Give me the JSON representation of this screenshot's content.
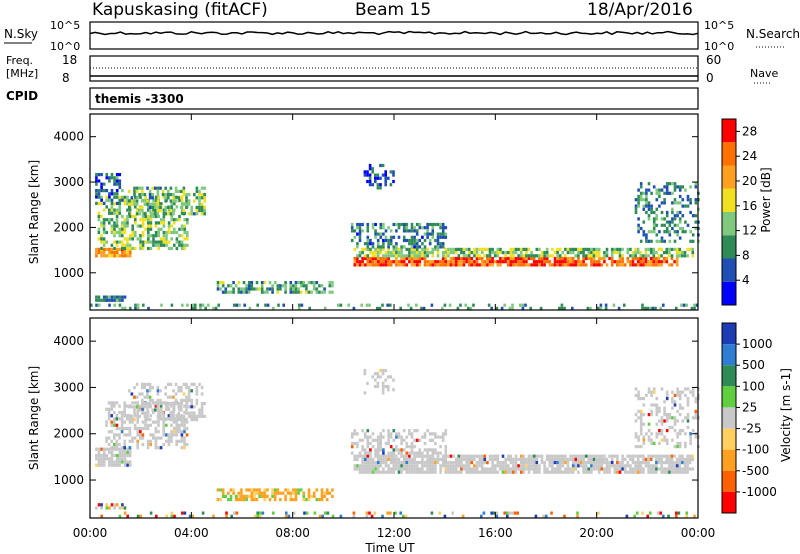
{
  "header": {
    "station": "Kapuskasing (fitACF)",
    "beam": "Beam 15",
    "date": "18/Apr/2016"
  },
  "noise_panel": {
    "left_label": "N.Sky",
    "right_label": "N.Search",
    "left_ticks": [
      "10^5",
      "10^0"
    ],
    "right_ticks": [
      "10^5",
      "10^0"
    ]
  },
  "freq_panel": {
    "left_label_line1": "Freq.",
    "left_label_line2": "[MHz]",
    "left_ticks": [
      "18",
      "8"
    ],
    "right_label": "Nave",
    "right_ticks": [
      "60",
      "0"
    ]
  },
  "cpid": {
    "label": "CPID",
    "value": "themis -3300"
  },
  "x_axis": {
    "label": "Time UT",
    "ticks": [
      "00:00",
      "04:00",
      "08:00",
      "12:00",
      "16:00",
      "20:00",
      "00:00"
    ],
    "range_hours": [
      0,
      24
    ]
  },
  "chart_data": [
    {
      "type": "heatmap",
      "name": "power",
      "ylabel": "Slant Range [km]",
      "yticks": [
        "1000",
        "2000",
        "3000",
        "4000"
      ],
      "ylim": [
        180,
        4500
      ],
      "xlim_hours": [
        0,
        24
      ],
      "colorbar_label": "Power [dB]",
      "colorbar_ticks": [
        "4",
        "8",
        "12",
        "16",
        "20",
        "24",
        "28"
      ],
      "colorbar_range": [
        0,
        30
      ],
      "colors": [
        "#0000ff",
        "#1f4fb4",
        "#2e8b57",
        "#7fc97f",
        "#f0e020",
        "#ffa020",
        "#ff7000",
        "#ff0000"
      ],
      "bands": [
        {
          "t0": 0.2,
          "t1": 1.6,
          "r0": 1350,
          "r1": 1550,
          "level": 22,
          "density": 0.9
        },
        {
          "t0": 0.3,
          "t1": 3.8,
          "r0": 1550,
          "r1": 2700,
          "level": 13,
          "density": 0.55
        },
        {
          "t0": 1.5,
          "t1": 4.5,
          "r0": 2300,
          "r1": 2900,
          "level": 12,
          "density": 0.5
        },
        {
          "t0": 0.2,
          "t1": 1.3,
          "r0": 2500,
          "r1": 3200,
          "level": 7,
          "density": 0.45
        },
        {
          "t0": 5.0,
          "t1": 9.6,
          "r0": 600,
          "r1": 820,
          "level": 11,
          "density": 0.6
        },
        {
          "t0": 0.2,
          "t1": 1.5,
          "r0": 380,
          "r1": 500,
          "level": 8,
          "density": 0.7
        },
        {
          "t0": 10.4,
          "t1": 23.2,
          "r0": 1150,
          "r1": 1350,
          "level": 24,
          "density": 0.85
        },
        {
          "t0": 10.4,
          "t1": 23.8,
          "r0": 1350,
          "r1": 1550,
          "level": 13,
          "density": 0.7
        },
        {
          "t0": 10.3,
          "t1": 14.0,
          "r0": 1550,
          "r1": 2100,
          "level": 8,
          "density": 0.5
        },
        {
          "t0": 10.8,
          "t1": 12.0,
          "r0": 2900,
          "r1": 3400,
          "level": 6,
          "density": 0.35
        },
        {
          "t0": 21.5,
          "t1": 24.0,
          "r0": 1700,
          "r1": 3000,
          "level": 9,
          "density": 0.35
        },
        {
          "t0": 0.0,
          "t1": 24.0,
          "r0": 200,
          "r1": 320,
          "level": 10,
          "density": 0.25
        }
      ]
    },
    {
      "type": "heatmap",
      "name": "velocity",
      "ylabel": "Slant Range [km]",
      "yticks": [
        "1000",
        "2000",
        "3000",
        "4000"
      ],
      "ylim": [
        180,
        4500
      ],
      "xlim_hours": [
        0,
        24
      ],
      "colorbar_label": "Velocity [m s-1]",
      "colorbar_ticks": [
        "1000",
        "500",
        "100",
        "25",
        "-25",
        "-100",
        "-500",
        "-1000"
      ],
      "colors": [
        "#1e3cb4",
        "#2e7dd2",
        "#2e8b57",
        "#5fcf40",
        "#c8c8c8",
        "#ffd060",
        "#ffa020",
        "#ff6000",
        "#ff0000"
      ],
      "bands": [
        {
          "t0": 0.2,
          "t1": 1.6,
          "r0": 1350,
          "r1": 1700,
          "level": "grey",
          "density": 0.9
        },
        {
          "t0": 0.6,
          "t1": 3.8,
          "r0": 1700,
          "r1": 2700,
          "level": "grey",
          "density": 0.5
        },
        {
          "t0": 1.5,
          "t1": 4.5,
          "r0": 2300,
          "r1": 3100,
          "level": "grey",
          "density": 0.4
        },
        {
          "t0": 5.0,
          "t1": 9.6,
          "r0": 600,
          "r1": 820,
          "level": "orange",
          "density": 0.6
        },
        {
          "t0": 0.2,
          "t1": 1.5,
          "r0": 380,
          "r1": 500,
          "level": "mixed",
          "density": 0.6
        },
        {
          "t0": 10.4,
          "t1": 23.8,
          "r0": 1150,
          "r1": 1550,
          "level": "grey",
          "density": 0.85
        },
        {
          "t0": 10.3,
          "t1": 14.0,
          "r0": 1550,
          "r1": 2100,
          "level": "grey",
          "density": 0.5
        },
        {
          "t0": 10.8,
          "t1": 12.0,
          "r0": 2900,
          "r1": 3400,
          "level": "grey",
          "density": 0.3
        },
        {
          "t0": 21.5,
          "t1": 24.0,
          "r0": 1700,
          "r1": 3000,
          "level": "grey",
          "density": 0.35
        },
        {
          "t0": 0.0,
          "t1": 24.0,
          "r0": 200,
          "r1": 320,
          "level": "mixed",
          "density": 0.2
        }
      ]
    }
  ]
}
